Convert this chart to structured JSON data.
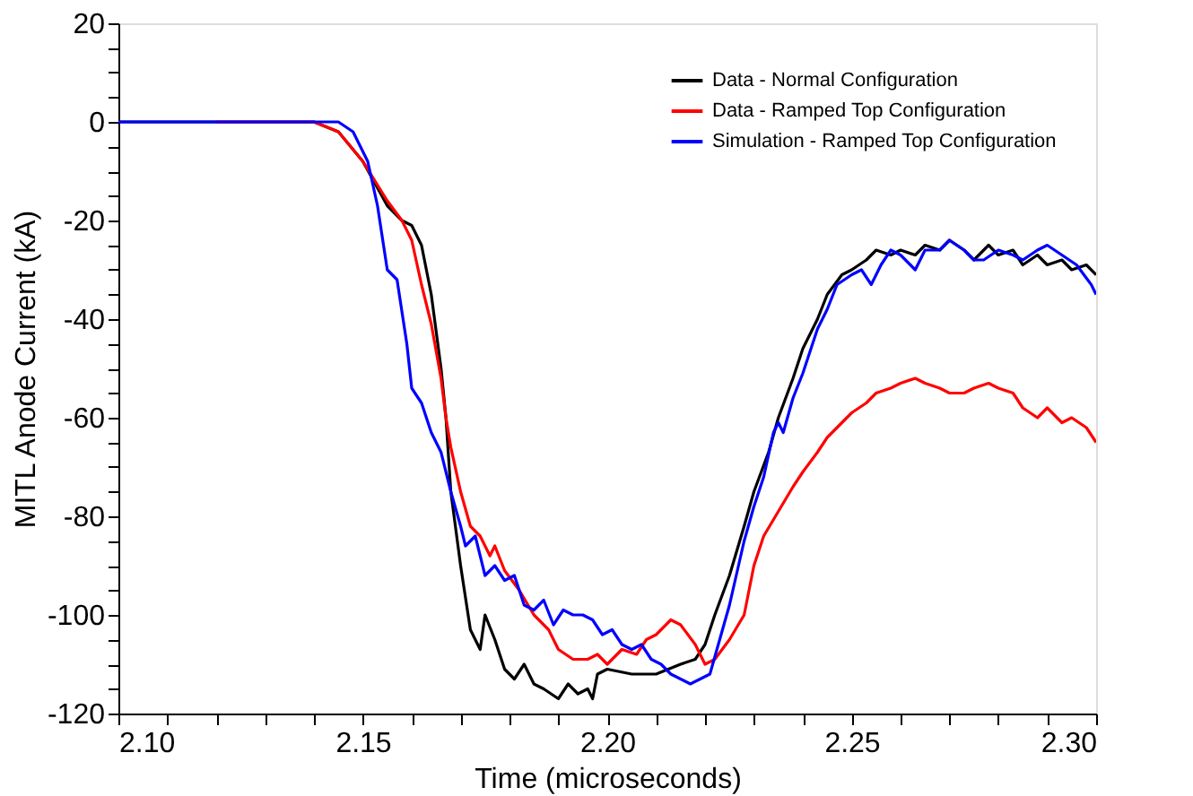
{
  "chart_data": {
    "type": "line",
    "xlabel": "Time (microseconds)",
    "ylabel": "MITL Anode Current (kA)",
    "xlim": [
      2.1,
      2.3
    ],
    "ylim": [
      -120,
      20
    ],
    "xticks": [
      {
        "value": 2.1,
        "label": "2.10"
      },
      {
        "value": 2.11,
        "label": null
      },
      {
        "value": 2.12,
        "label": null
      },
      {
        "value": 2.13,
        "label": null
      },
      {
        "value": 2.14,
        "label": null
      },
      {
        "value": 2.15,
        "label": "2.15"
      },
      {
        "value": 2.16,
        "label": null
      },
      {
        "value": 2.17,
        "label": null
      },
      {
        "value": 2.18,
        "label": null
      },
      {
        "value": 2.19,
        "label": null
      },
      {
        "value": 2.2,
        "label": "2.20"
      },
      {
        "value": 2.21,
        "label": null
      },
      {
        "value": 2.22,
        "label": null
      },
      {
        "value": 2.23,
        "label": null
      },
      {
        "value": 2.24,
        "label": null
      },
      {
        "value": 2.25,
        "label": "2.25"
      },
      {
        "value": 2.26,
        "label": null
      },
      {
        "value": 2.27,
        "label": null
      },
      {
        "value": 2.28,
        "label": null
      },
      {
        "value": 2.29,
        "label": null
      },
      {
        "value": 2.3,
        "label": "2.30"
      }
    ],
    "yticks": [
      -120,
      {
        "value": -115,
        "label": null
      },
      {
        "value": -110,
        "label": null
      },
      {
        "value": -105,
        "label": null
      },
      -100,
      {
        "value": -95,
        "label": null
      },
      {
        "value": -90,
        "label": null
      },
      {
        "value": -85,
        "label": null
      },
      -80,
      {
        "value": -75,
        "label": null
      },
      {
        "value": -70,
        "label": null
      },
      {
        "value": -65,
        "label": null
      },
      -60,
      {
        "value": -55,
        "label": null
      },
      {
        "value": -50,
        "label": null
      },
      {
        "value": -45,
        "label": null
      },
      -40,
      {
        "value": -35,
        "label": null
      },
      {
        "value": -30,
        "label": null
      },
      {
        "value": -25,
        "label": null
      },
      -20,
      {
        "value": -15,
        "label": null
      },
      {
        "value": -10,
        "label": null
      },
      {
        "value": -5,
        "label": null
      },
      0,
      {
        "value": 5,
        "label": null
      },
      {
        "value": 10,
        "label": null
      },
      {
        "value": 15,
        "label": null
      },
      20
    ],
    "grid": false,
    "legend": "top right",
    "marker": "none",
    "line_style": "solid",
    "series": [
      {
        "name": "Data - Normal Configuration",
        "color": "#000000",
        "x": [
          2.1,
          2.14,
          2.145,
          2.15,
          2.155,
          2.158,
          2.16,
          2.162,
          2.164,
          2.166,
          2.167,
          2.168,
          2.17,
          2.172,
          2.174,
          2.175,
          2.177,
          2.179,
          2.181,
          2.183,
          2.185,
          2.187,
          2.19,
          2.192,
          2.194,
          2.196,
          2.197,
          2.198,
          2.2,
          2.205,
          2.21,
          2.215,
          2.218,
          2.22,
          2.222,
          2.225,
          2.228,
          2.23,
          2.233,
          2.235,
          2.238,
          2.24,
          2.243,
          2.245,
          2.248,
          2.25,
          2.253,
          2.255,
          2.258,
          2.26,
          2.263,
          2.265,
          2.268,
          2.27,
          2.273,
          2.275,
          2.278,
          2.28,
          2.283,
          2.285,
          2.288,
          2.29,
          2.293,
          2.295,
          2.298,
          2.3
        ],
        "values": [
          0,
          0,
          -2,
          -8,
          -17,
          -20,
          -21,
          -25,
          -35,
          -50,
          -60,
          -75,
          -90,
          -103,
          -107,
          -100,
          -105,
          -111,
          -113,
          -110,
          -114,
          -115,
          -117,
          -114,
          -116,
          -115,
          -117,
          -112,
          -111,
          -112,
          -112,
          -110,
          -109,
          -106,
          -100,
          -92,
          -82,
          -75,
          -67,
          -60,
          -52,
          -46,
          -40,
          -35,
          -31,
          -30,
          -28,
          -26,
          -27,
          -26,
          -27,
          -25,
          -26,
          -24,
          -26,
          -28,
          -25,
          -27,
          -26,
          -29,
          -27,
          -29,
          -28,
          -30,
          -29,
          -31
        ]
      },
      {
        "name": "Data - Ramped Top Configuration",
        "color": "#ff0000",
        "x": [
          2.12,
          2.14,
          2.145,
          2.15,
          2.155,
          2.158,
          2.16,
          2.162,
          2.163,
          2.164,
          2.166,
          2.167,
          2.168,
          2.17,
          2.172,
          2.174,
          2.176,
          2.177,
          2.179,
          2.182,
          2.185,
          2.188,
          2.19,
          2.193,
          2.196,
          2.198,
          2.2,
          2.203,
          2.206,
          2.208,
          2.21,
          2.213,
          2.215,
          2.218,
          2.22,
          2.222,
          2.225,
          2.228,
          2.23,
          2.232,
          2.235,
          2.238,
          2.24,
          2.243,
          2.245,
          2.248,
          2.25,
          2.253,
          2.255,
          2.258,
          2.26,
          2.263,
          2.265,
          2.268,
          2.27,
          2.273,
          2.275,
          2.278,
          2.28,
          2.283,
          2.285,
          2.288,
          2.29,
          2.293,
          2.295,
          2.298,
          2.3
        ],
        "values": [
          0,
          0,
          -2,
          -8,
          -16,
          -20,
          -24,
          -33,
          -37,
          -41,
          -52,
          -60,
          -66,
          -75,
          -82,
          -84,
          -88,
          -86,
          -91,
          -95,
          -100,
          -103,
          -107,
          -109,
          -109,
          -108,
          -110,
          -107,
          -108,
          -105,
          -104,
          -101,
          -102,
          -106,
          -110,
          -109,
          -105,
          -100,
          -90,
          -84,
          -79,
          -74,
          -71,
          -67,
          -64,
          -61,
          -59,
          -57,
          -55,
          -54,
          -53,
          -52,
          -53,
          -54,
          -55,
          -55,
          -54,
          -53,
          -54,
          -55,
          -58,
          -60,
          -58,
          -61,
          -60,
          -62,
          -65
        ]
      },
      {
        "name": "Simulation - Ramped Top Configuration",
        "color": "#0000ff",
        "x": [
          2.1,
          2.145,
          2.148,
          2.151,
          2.153,
          2.155,
          2.157,
          2.159,
          2.16,
          2.162,
          2.164,
          2.166,
          2.168,
          2.17,
          2.171,
          2.173,
          2.175,
          2.177,
          2.179,
          2.181,
          2.183,
          2.185,
          2.187,
          2.189,
          2.191,
          2.193,
          2.195,
          2.197,
          2.199,
          2.201,
          2.203,
          2.205,
          2.207,
          2.209,
          2.211,
          2.213,
          2.215,
          2.217,
          2.219,
          2.221,
          2.223,
          2.225,
          2.228,
          2.23,
          2.232,
          2.234,
          2.235,
          2.236,
          2.238,
          2.24,
          2.243,
          2.245,
          2.247,
          2.25,
          2.252,
          2.254,
          2.256,
          2.258,
          2.26,
          2.263,
          2.265,
          2.268,
          2.27,
          2.273,
          2.275,
          2.277,
          2.28,
          2.283,
          2.285,
          2.288,
          2.29,
          2.293,
          2.296,
          2.299,
          2.3
        ],
        "values": [
          0,
          0,
          -2,
          -8,
          -17,
          -30,
          -32,
          -45,
          -54,
          -57,
          -63,
          -67,
          -75,
          -82,
          -86,
          -84,
          -92,
          -90,
          -93,
          -92,
          -98,
          -99,
          -97,
          -102,
          -99,
          -100,
          -100,
          -101,
          -104,
          -103,
          -106,
          -107,
          -106,
          -109,
          -110,
          -112,
          -113,
          -114,
          -113,
          -112,
          -105,
          -98,
          -85,
          -78,
          -72,
          -63,
          -61,
          -63,
          -56,
          -51,
          -42,
          -38,
          -33,
          -31,
          -30,
          -33,
          -29,
          -26,
          -27,
          -30,
          -26,
          -26,
          -24,
          -26,
          -28,
          -28,
          -26,
          -27,
          -28,
          -26,
          -25,
          -27,
          -29,
          -33,
          -35
        ]
      }
    ]
  }
}
